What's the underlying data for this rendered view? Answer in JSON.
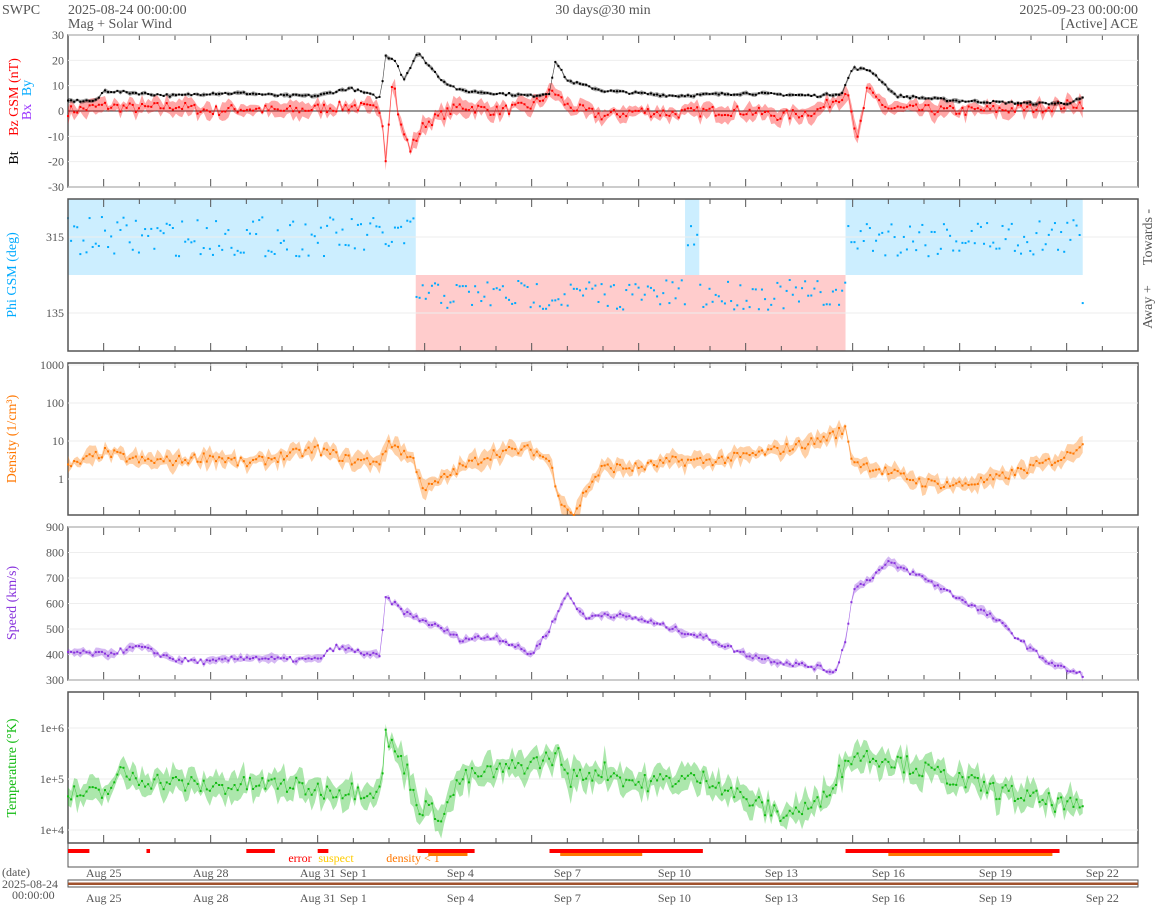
{
  "header": {
    "org": "SWPC",
    "start": "2025-08-24 00:00:00",
    "subtitle": "Mag + Solar Wind",
    "span": "30 days@30 min",
    "end": "2025-09-23 00:00:00",
    "source": "[Active] ACE"
  },
  "colors": {
    "bt": "#000000",
    "bz": "#ff0000",
    "bx": "#9933ff",
    "by": "#00aaff",
    "density": "#ff7700",
    "speed": "#8833dd",
    "temp": "#11bb11",
    "towards": "#cceeff",
    "away": "#ffcccc"
  },
  "chart_data": [
    {
      "type": "line",
      "panel": "mag",
      "ylabel_bt": "Bt",
      "ylabel_bz": "Bz GSM (nT)",
      "legend_bx": "Bx",
      "legend_by": "By",
      "ylim": [
        -30,
        30
      ],
      "yticks": [
        "30",
        "20",
        "10",
        "0",
        "-10",
        "-20",
        "-30"
      ],
      "bt": {
        "t": [
          0,
          0.8,
          1,
          2,
          3,
          4,
          5,
          6,
          7,
          7.9,
          8.8,
          8.85,
          9.2,
          9.4,
          9.8,
          10.5,
          11,
          12,
          13,
          13.5,
          13.65,
          14,
          15,
          17,
          19,
          21,
          21.7,
          22,
          22.5,
          22.8,
          23.2,
          25,
          27,
          28,
          28.45
        ],
        "v": [
          4,
          4,
          8,
          7,
          6,
          7,
          7,
          6,
          6,
          9,
          5,
          22,
          20,
          12,
          23,
          12,
          8,
          7,
          6,
          7,
          20,
          12,
          8,
          6,
          7,
          6,
          7,
          17,
          16,
          12,
          6,
          4,
          3,
          3,
          5
        ]
      },
      "bz": {
        "t": [
          0,
          1,
          2,
          3,
          4,
          5,
          6,
          7,
          8,
          8.8,
          8.9,
          9.1,
          9.3,
          9.6,
          10,
          11,
          12,
          13,
          13.6,
          14,
          15,
          16,
          17,
          18,
          19,
          20,
          21,
          21.9,
          22.1,
          22.4,
          23,
          25,
          27,
          28.45
        ],
        "v": [
          0,
          2,
          1,
          2,
          0,
          1,
          0,
          1,
          2,
          0,
          -20,
          15,
          -5,
          -15,
          -5,
          2,
          0,
          2,
          8,
          2,
          -2,
          0,
          -1,
          0,
          0,
          -2,
          0,
          8,
          -14,
          8,
          1,
          0,
          1,
          3
        ]
      }
    },
    {
      "type": "scatter",
      "panel": "phi",
      "ylabel": "Phi GSM (deg)",
      "yticks": [
        "315",
        "135"
      ],
      "right_top": "Towards -",
      "right_bottom": "Away +",
      "sectors": [
        {
          "from": 0,
          "to": 9.75,
          "dir": "towards"
        },
        {
          "from": 9.75,
          "to": 21.8,
          "dir": "away"
        },
        {
          "from": 17.3,
          "to": 17.7,
          "dir": "towards"
        },
        {
          "from": 21.8,
          "to": 28.45,
          "dir": "towards"
        }
      ]
    },
    {
      "type": "line",
      "panel": "density",
      "ylabel": "Density (1/cm³)",
      "log": true,
      "yticks": [
        "1000",
        "100",
        "10",
        "1"
      ],
      "t": [
        0,
        1,
        2,
        3,
        4,
        5,
        6,
        7,
        8,
        8.8,
        9,
        9.7,
        10,
        10.5,
        11,
        12,
        13,
        13.5,
        13.8,
        14.2,
        14.5,
        15,
        16,
        17,
        18,
        19,
        20,
        21,
        21.8,
        22,
        23,
        24,
        25,
        26,
        27,
        28,
        28.45
      ],
      "v": [
        2,
        5,
        3,
        3,
        4,
        2.5,
        4,
        6,
        3,
        3,
        10,
        3,
        0.5,
        1,
        2,
        5,
        6,
        3,
        0.3,
        0.1,
        0.5,
        2,
        2,
        3,
        3,
        4,
        6,
        10,
        20,
        3,
        1.5,
        0.8,
        0.7,
        1,
        2,
        4,
        10
      ]
    },
    {
      "type": "line",
      "panel": "speed",
      "ylabel": "Speed (km/s)",
      "ylim": [
        300,
        900
      ],
      "yticks": [
        "900",
        "800",
        "700",
        "600",
        "500",
        "400",
        "300"
      ],
      "t": [
        0,
        1,
        2,
        3,
        4,
        5,
        6,
        7,
        7.5,
        8.8,
        8.85,
        9.5,
        10.5,
        11,
        12,
        13,
        13.5,
        14,
        14.5,
        15,
        16,
        17,
        18,
        19,
        20,
        21,
        21.5,
        21.8,
        22,
        22.5,
        23,
        24,
        25,
        26,
        27,
        27.5,
        28,
        28.45
      ],
      "v": [
        410,
        400,
        430,
        380,
        370,
        390,
        380,
        380,
        430,
        390,
        630,
        560,
        500,
        460,
        470,
        400,
        500,
        640,
        540,
        560,
        540,
        500,
        460,
        400,
        370,
        350,
        330,
        450,
        650,
        700,
        760,
        700,
        620,
        540,
        420,
        370,
        340,
        320
      ]
    },
    {
      "type": "line",
      "panel": "temperature",
      "ylabel": "Temperature (°K)",
      "log": true,
      "yticks": [
        "1e+6",
        "1e+5",
        "1e+4"
      ],
      "t": [
        0,
        1,
        1.5,
        2,
        4,
        6,
        7,
        8.8,
        8.85,
        9.5,
        9.8,
        10.5,
        11,
        13,
        13.8,
        14,
        15,
        16,
        17,
        18,
        19,
        20,
        21,
        21.5,
        22,
        23,
        24,
        26,
        28,
        28.45
      ],
      "v": [
        50000.0,
        50000.0,
        130000.0,
        100000.0,
        70000.0,
        80000.0,
        60000.0,
        60000.0,
        800000.0,
        150000.0,
        30000.0,
        20000.0,
        100000.0,
        200000.0,
        300000.0,
        100000.0,
        150000.0,
        80000.0,
        100000.0,
        100000.0,
        40000.0,
        20000.0,
        30000.0,
        100000.0,
        300000.0,
        250000.0,
        150000.0,
        60000.0,
        30000.0,
        25000.0
      ]
    },
    {
      "type": "table",
      "panel": "flags",
      "legend": [
        "error",
        "suspect",
        "density < 1"
      ],
      "error": [
        [
          0,
          0.6
        ],
        [
          2.2,
          2.3
        ],
        [
          5,
          5.8
        ],
        [
          7,
          7.3
        ],
        [
          9.8,
          11.4
        ],
        [
          13.5,
          17.8
        ],
        [
          21.8,
          27.8
        ]
      ],
      "density_lt1": [
        [
          10.1,
          11.2
        ],
        [
          13.8,
          16.1
        ],
        [
          23,
          27.6
        ]
      ]
    }
  ],
  "xaxis": {
    "date_label": "(date)",
    "date_value": "2025-08-24",
    "time_value": "00:00:00",
    "ticks": [
      {
        "d": 1,
        "l": "Aug 25"
      },
      {
        "d": 4,
        "l": "Aug 28"
      },
      {
        "d": 7,
        "l": "Aug 31"
      },
      {
        "d": 8,
        "l": "Sep 1"
      },
      {
        "d": 11,
        "l": "Sep 4"
      },
      {
        "d": 14,
        "l": "Sep 7"
      },
      {
        "d": 17,
        "l": "Sep 10"
      },
      {
        "d": 20,
        "l": "Sep 13"
      },
      {
        "d": 23,
        "l": "Sep 16"
      },
      {
        "d": 26,
        "l": "Sep 19"
      },
      {
        "d": 29,
        "l": "Sep 22"
      }
    ]
  }
}
